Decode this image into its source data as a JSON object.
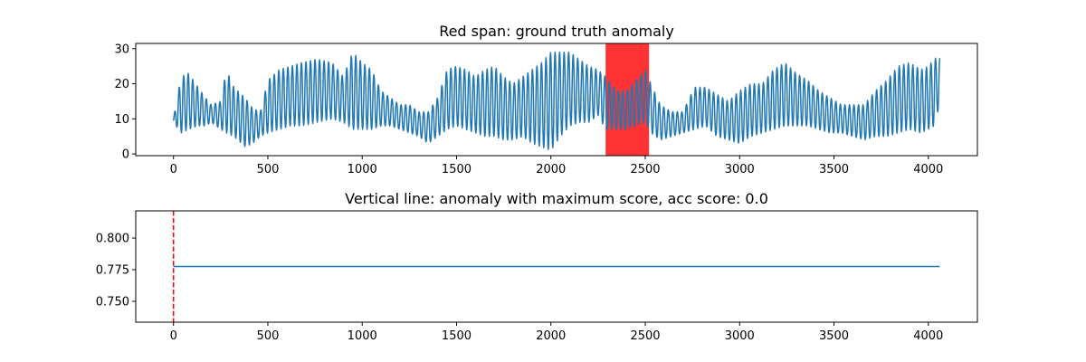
{
  "chart_data": [
    {
      "type": "line",
      "title": "Red span: ground truth anomaly",
      "xlabel": "",
      "ylabel": "",
      "xlim": [
        -200,
        4260
      ],
      "ylim": [
        -0.5,
        31.5
      ],
      "xticks": [
        0,
        500,
        1000,
        1500,
        2000,
        2500,
        3000,
        3500,
        4000
      ],
      "yticks": [
        0,
        10,
        20,
        30
      ],
      "xtick_labels": [
        "0",
        "500",
        "1000",
        "1500",
        "2000",
        "2500",
        "3000",
        "3500",
        "4000"
      ],
      "ytick_labels": [
        "0",
        "10",
        "20",
        "30"
      ],
      "grid": false,
      "series": [
        {
          "color": "#1f77b4",
          "x_start": 0,
          "x_end": 4060,
          "envelope_x": [
            0,
            40,
            80,
            130,
            170,
            200,
            250,
            280,
            320,
            380,
            420,
            460,
            500,
            560,
            620,
            680,
            760,
            840,
            900,
            950,
            1000,
            1050,
            1100,
            1150,
            1200,
            1250,
            1300,
            1350,
            1400,
            1450,
            1500,
            1550,
            1600,
            1650,
            1700,
            1750,
            1800,
            1850,
            1900,
            1950,
            2000,
            2050,
            2100,
            2150,
            2200,
            2250,
            2290,
            2350,
            2400,
            2450,
            2500,
            2530,
            2580,
            2640,
            2700,
            2760,
            2820,
            2880,
            2940,
            3000,
            3060,
            3120,
            3180,
            3240,
            3300,
            3360,
            3420,
            3480,
            3540,
            3600,
            3660,
            3720,
            3780,
            3840,
            3900,
            3960,
            4000,
            4030,
            4060
          ],
          "envelope_max": [
            10,
            22,
            23,
            19,
            16,
            14,
            15,
            24,
            19,
            16,
            13,
            12,
            21,
            24,
            25,
            26,
            27,
            26,
            22,
            29,
            26,
            24,
            18,
            16,
            14,
            14,
            12,
            12,
            16,
            24,
            25,
            24,
            22,
            24,
            25,
            22,
            20,
            22,
            24,
            26,
            29,
            29,
            29,
            27,
            25,
            24,
            22,
            18,
            18,
            21,
            24,
            20,
            14,
            12,
            12,
            19,
            19,
            17,
            15,
            18,
            20,
            20,
            24,
            26,
            23,
            21,
            18,
            16,
            14,
            14,
            14,
            18,
            21,
            25,
            26,
            24,
            25,
            27,
            28
          ],
          "envelope_min": [
            9,
            6,
            7,
            8,
            8,
            9,
            7,
            6,
            5,
            2,
            3,
            5,
            6,
            7,
            8,
            8,
            9,
            10,
            9,
            7,
            7,
            7,
            8,
            8,
            7,
            6,
            5,
            3,
            5,
            7,
            8,
            7,
            6,
            5,
            5,
            4,
            4,
            5,
            3,
            2,
            1,
            5,
            8,
            9,
            9,
            11,
            7,
            7,
            7,
            8,
            9,
            6,
            4,
            5,
            6,
            7,
            8,
            5,
            4,
            3,
            5,
            6,
            7,
            8,
            8,
            8,
            7,
            6,
            6,
            5,
            4,
            5,
            5,
            6,
            7,
            6,
            7,
            8,
            14
          ]
        }
      ],
      "spans": [
        {
          "x_start": 2290,
          "x_end": 2520,
          "color": "#ff0000",
          "alpha": 0.8
        }
      ]
    },
    {
      "type": "line",
      "title": "Vertical line: anomaly with maximum score, acc score: 0.0",
      "xlabel": "",
      "ylabel": "",
      "xlim": [
        -200,
        4260
      ],
      "ylim": [
        0.7335,
        0.8215
      ],
      "xticks": [
        0,
        500,
        1000,
        1500,
        2000,
        2500,
        3000,
        3500,
        4000
      ],
      "yticks": [
        0.75,
        0.775,
        0.8
      ],
      "xtick_labels": [
        "0",
        "500",
        "1000",
        "1500",
        "2000",
        "2500",
        "3000",
        "3500",
        "4000"
      ],
      "ytick_labels": [
        "0.750",
        "0.775",
        "0.800"
      ],
      "grid": false,
      "series": [
        {
          "color": "#1f77b4",
          "x": [
            0,
            4060
          ],
          "y": [
            0.7775,
            0.7775
          ]
        }
      ],
      "vlines": [
        {
          "x": 0,
          "color": "#ff0000",
          "style": "dashed"
        }
      ]
    }
  ]
}
